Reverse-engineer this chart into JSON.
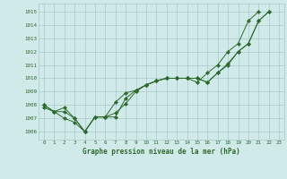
{
  "x": [
    0,
    1,
    2,
    3,
    4,
    5,
    6,
    7,
    8,
    9,
    10,
    11,
    12,
    13,
    14,
    15,
    16,
    17,
    18,
    19,
    20,
    21,
    22,
    23
  ],
  "series1": [
    1008.0,
    1007.5,
    1007.8,
    1007.0,
    1006.0,
    1007.1,
    1007.1,
    1008.2,
    1008.9,
    1009.1,
    1009.5,
    1009.8,
    1010.0,
    1010.0,
    1010.0,
    1009.7,
    1010.4,
    1011.0,
    1012.0,
    1012.6,
    1014.3,
    1015.0,
    null,
    null
  ],
  "series2": [
    1008.0,
    1007.5,
    1007.5,
    1007.0,
    1006.0,
    1007.1,
    1007.1,
    1007.1,
    1008.5,
    1009.1,
    1009.5,
    1009.8,
    1010.0,
    1010.0,
    1010.0,
    1010.0,
    1009.7,
    1010.4,
    1011.0,
    1012.0,
    1012.6,
    1014.3,
    1015.0,
    null
  ],
  "series3": [
    1007.8,
    1007.5,
    1007.0,
    1006.7,
    1006.0,
    1007.1,
    1007.1,
    1007.4,
    1008.1,
    1009.0,
    1009.5,
    1009.8,
    1010.0,
    1010.0,
    1010.0,
    1010.0,
    1009.7,
    1010.4,
    1011.1,
    1012.0,
    1012.6,
    1014.3,
    1015.0,
    null
  ],
  "line_color": "#2d6a2d",
  "bg_color": "#d0eaea",
  "grid_color": "#aac8c8",
  "ylabel_values": [
    1006,
    1007,
    1008,
    1009,
    1010,
    1011,
    1012,
    1013,
    1014,
    1015
  ],
  "ylim": [
    1005.4,
    1015.6
  ],
  "xlim": [
    -0.5,
    23.5
  ],
  "xlabel": "Graphe pression niveau de la mer (hPa)",
  "marker_size": 2.2
}
